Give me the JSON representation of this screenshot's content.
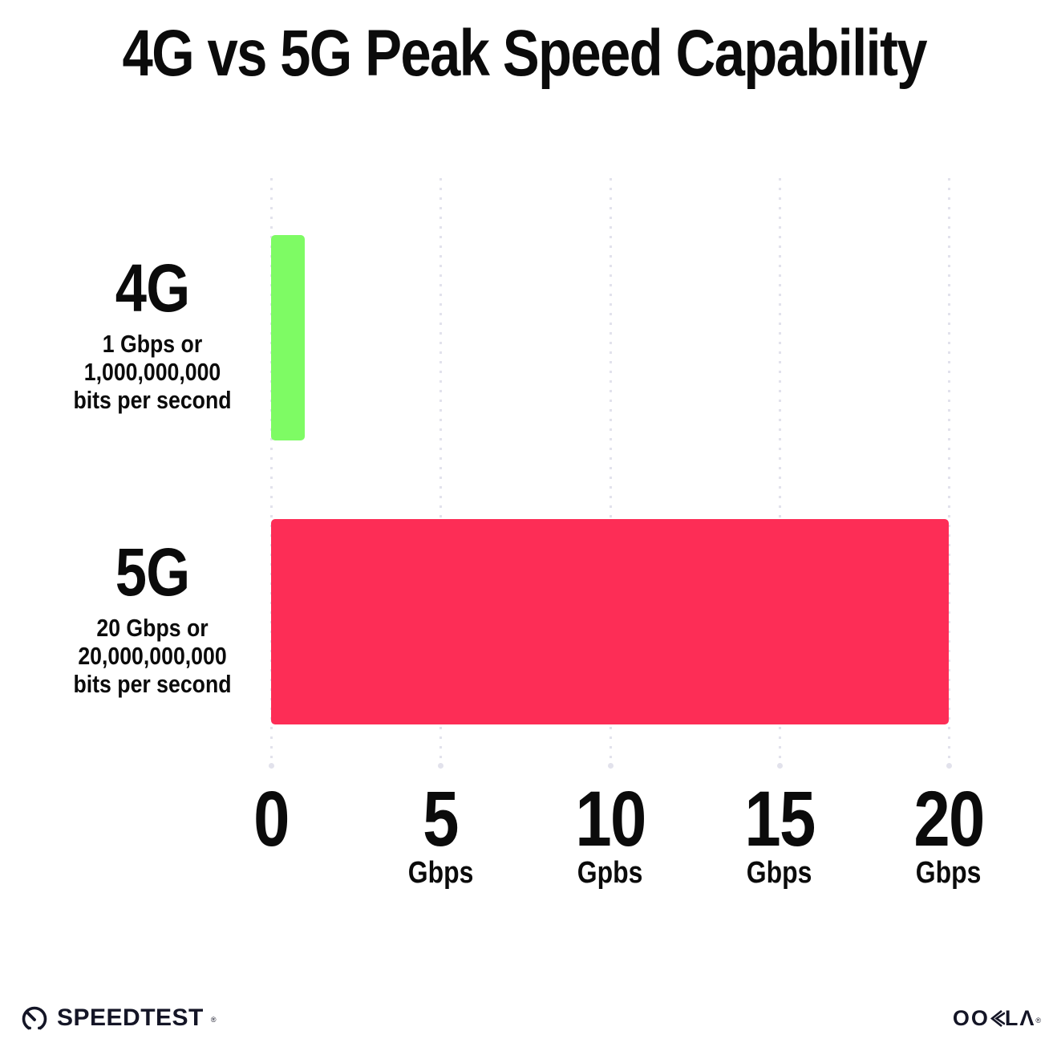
{
  "title": "4G vs 5G Peak Speed Capability",
  "chart_data": {
    "type": "bar",
    "orientation": "horizontal",
    "title": "4G vs 5G Peak Speed Capability",
    "categories": [
      "4G",
      "5G"
    ],
    "values": [
      1,
      20
    ],
    "value_unit": "Gbps",
    "xlim": [
      0,
      20
    ],
    "grid": "vertical-dotted",
    "legend": "none",
    "bars": [
      {
        "label": "4G",
        "description_lines": [
          "1 Gbps or",
          "1,000,000,000",
          "bits per second"
        ],
        "value": 1,
        "color": "#7efb64"
      },
      {
        "label": "5G",
        "description_lines": [
          "20 Gbps or",
          "20,000,000,000",
          "bits per second"
        ],
        "value": 20,
        "color": "#fd2d56"
      }
    ],
    "xticks": [
      {
        "value": 0,
        "label": "0",
        "unit": ""
      },
      {
        "value": 5,
        "label": "5",
        "unit": "Gbps"
      },
      {
        "value": 10,
        "label": "10",
        "unit": "Gpbs"
      },
      {
        "value": 15,
        "label": "15",
        "unit": "Gbps"
      },
      {
        "value": 20,
        "label": "20",
        "unit": "Gbps"
      }
    ]
  },
  "footer": {
    "speedtest_label": "SPEEDTEST",
    "speedtest_trademark": "®",
    "ookla_label": "OOKLΛ",
    "ookla_trademark": "®"
  },
  "colors": {
    "bar_4g": "#7efb64",
    "bar_5g": "#fd2d56",
    "gridline": "#e2e2ec",
    "text": "#0b0b0b",
    "logo": "#141526",
    "background": "#ffffff"
  }
}
